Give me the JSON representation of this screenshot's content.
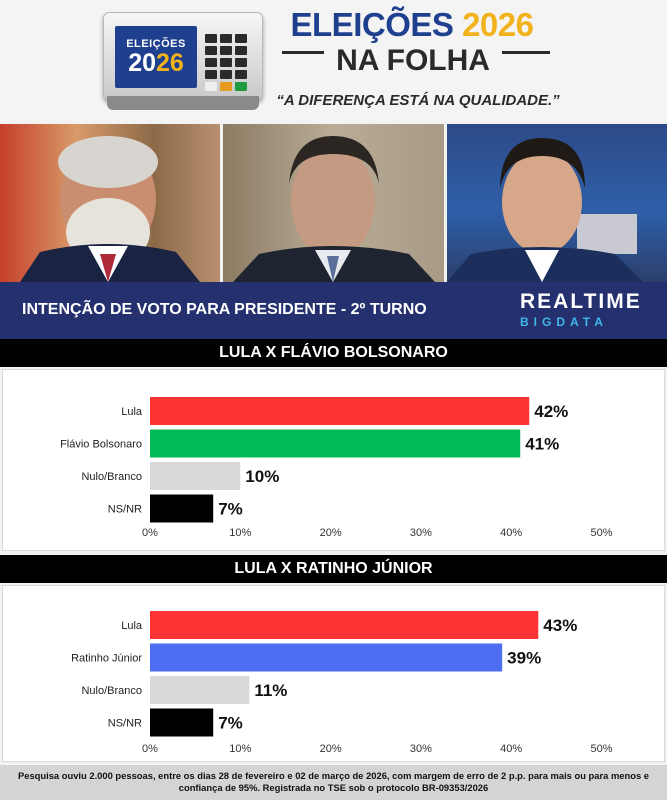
{
  "header": {
    "urna_line1": "ELEIÇÕES",
    "urna_line2a": "20",
    "urna_line2b": "26",
    "title_a": "ELEIÇÕES ",
    "title_b": "2026",
    "subtitle": "NA FOLHA",
    "slogan": "“A DIFERENÇA ESTÁ NA QUALIDADE.”"
  },
  "banner": {
    "title": "INTENÇÃO DE VOTO PARA PRESIDENTE - 2º TURNO",
    "brand_line1": "REALTIME",
    "brand_line2": "BIGDATA"
  },
  "colors": {
    "lula": "#ff3333",
    "flavio": "#00bb55",
    "ratinho": "#4d6ef0",
    "nulo": "#d9d9d9",
    "nsnr": "#000000",
    "banner_bg": "#25306f",
    "brand_accent": "#3fb8e8"
  },
  "chart_data": [
    {
      "type": "bar",
      "orientation": "horizontal",
      "title": "LULA X FLÁVIO BOLSONARO",
      "categories": [
        "Lula",
        "Flávio Bolsonaro",
        "Nulo/Branco",
        "NS/NR"
      ],
      "values": [
        42,
        41,
        10,
        7
      ],
      "value_labels": [
        "42%",
        "41%",
        "10%",
        "7%"
      ],
      "bar_colors": [
        "#ff3333",
        "#00bb55",
        "#d9d9d9",
        "#000000"
      ],
      "xlim": [
        0,
        50
      ],
      "xticks": [
        "0%",
        "10%",
        "20%",
        "30%",
        "40%",
        "50%"
      ],
      "grid": false
    },
    {
      "type": "bar",
      "orientation": "horizontal",
      "title": "LULA X RATINHO JÚNIOR",
      "categories": [
        "Lula",
        "Ratinho Júnior",
        "Nulo/Branco",
        "NS/NR"
      ],
      "values": [
        43,
        39,
        11,
        7
      ],
      "value_labels": [
        "43%",
        "39%",
        "11%",
        "7%"
      ],
      "bar_colors": [
        "#ff3333",
        "#4d6ef0",
        "#d9d9d9",
        "#000000"
      ],
      "xlim": [
        0,
        50
      ],
      "xticks": [
        "0%",
        "10%",
        "20%",
        "30%",
        "40%",
        "50%"
      ],
      "grid": false
    }
  ],
  "footer": {
    "text": "Pesquisa ouviu 2.000 pessoas, entre os dias 28 de fevereiro e 02 de março de 2026, com margem de erro de 2 p.p. para mais ou para menos e confiança de 95%. Registrada no TSE sob o protocolo BR-09353/2026"
  }
}
